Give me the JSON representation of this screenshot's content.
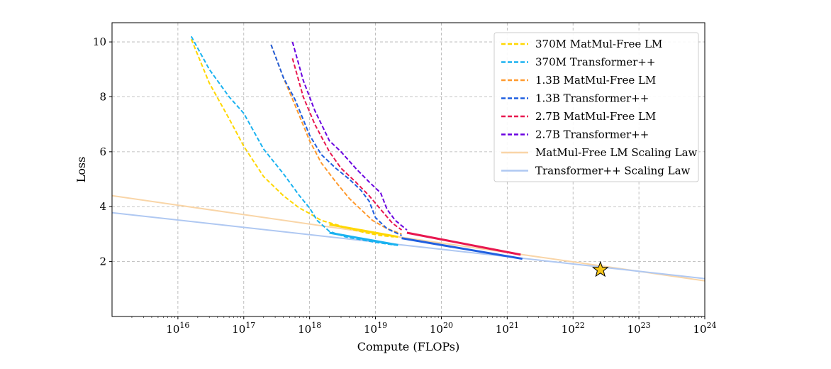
{
  "chart_data": {
    "type": "line",
    "title": "",
    "xlabel": "Compute (FLOPs)",
    "ylabel": "Loss",
    "xscale": "log",
    "xlim": [
      1000000000000000.0,
      1e+24
    ],
    "ylim": [
      0,
      10.7
    ],
    "x_ticks": [
      {
        "value": 1e+16,
        "base": "10",
        "exp": "16"
      },
      {
        "value": 1e+17,
        "base": "10",
        "exp": "17"
      },
      {
        "value": 1e+18,
        "base": "10",
        "exp": "18"
      },
      {
        "value": 1e+19,
        "base": "10",
        "exp": "19"
      },
      {
        "value": 1e+20,
        "base": "10",
        "exp": "20"
      },
      {
        "value": 1e+21,
        "base": "10",
        "exp": "21"
      },
      {
        "value": 1e+22,
        "base": "10",
        "exp": "22"
      },
      {
        "value": 1e+23,
        "base": "10",
        "exp": "23"
      },
      {
        "value": 1e+24,
        "base": "10",
        "exp": "24"
      }
    ],
    "y_ticks": [
      {
        "value": 2,
        "label": "2"
      },
      {
        "value": 4,
        "label": "4"
      },
      {
        "value": 6,
        "label": "6"
      },
      {
        "value": 8,
        "label": "8"
      },
      {
        "value": 10,
        "label": "10"
      }
    ],
    "grid": true,
    "legend_position": "top-right",
    "series": [
      {
        "name": "370M MatMul-Free LM",
        "color": "#FFD700",
        "style": "dashed",
        "x": [
          1.6e+16,
          3e+16,
          6e+16,
          1e+17,
          2e+17,
          4e+17,
          7e+17,
          1e+18,
          1.5e+18,
          2.5e+18,
          4e+18,
          7e+18,
          1.2e+19,
          1.9e+19
        ],
        "y": [
          10.1,
          8.5,
          7.2,
          6.2,
          5.1,
          4.4,
          3.95,
          3.75,
          3.5,
          3.35,
          3.2,
          3.05,
          2.95,
          2.9
        ]
      },
      {
        "name": "370M Transformer++",
        "color": "#1AB2F0",
        "style": "dashed",
        "x": [
          1.6e+16,
          3e+16,
          6e+16,
          1e+17,
          2e+17,
          4e+17,
          7e+17,
          1e+18,
          1.3e+18,
          2e+18,
          3.5e+18,
          6e+18,
          1e+19,
          2e+19
        ],
        "y": [
          10.2,
          9.0,
          8.0,
          7.4,
          6.1,
          5.2,
          4.4,
          3.95,
          3.5,
          3.1,
          2.9,
          2.8,
          2.7,
          2.6
        ]
      },
      {
        "name": "1.3B MatMul-Free LM",
        "color": "#FF9A2E",
        "style": "dashed",
        "x": [
          2.6e+17,
          4e+17,
          6e+17,
          1e+18,
          1.5e+18,
          2.5e+18,
          4e+18,
          6e+18,
          9e+18,
          1.5e+19,
          2.5e+19
        ],
        "y": [
          9.9,
          8.7,
          7.7,
          6.4,
          5.6,
          4.9,
          4.3,
          3.9,
          3.5,
          3.2,
          3.0
        ]
      },
      {
        "name": "1.3B Transformer++",
        "color": "#1F5FE0",
        "style": "dashed",
        "x": [
          2.6e+17,
          4e+17,
          6e+17,
          1e+18,
          1.5e+18,
          2.5e+18,
          4e+18,
          6e+18,
          8e+18,
          1e+19,
          1.5e+19,
          2.5e+19
        ],
        "y": [
          9.9,
          8.7,
          7.9,
          6.6,
          5.9,
          5.4,
          5.0,
          4.6,
          4.2,
          3.6,
          3.2,
          2.95
        ]
      },
      {
        "name": "2.7B MatMul-Free LM",
        "color": "#E8174F",
        "style": "dashed",
        "x": [
          5.5e+17,
          8e+17,
          1.2e+18,
          2e+18,
          3e+18,
          5e+18,
          8e+18,
          1.2e+19,
          1.8e+19,
          2.5e+19
        ],
        "y": [
          9.4,
          8.0,
          7.0,
          6.0,
          5.4,
          4.9,
          4.4,
          3.9,
          3.4,
          3.15
        ]
      },
      {
        "name": "2.7B Transformer++",
        "color": "#6A00E0",
        "style": "dashed",
        "x": [
          5.5e+17,
          8e+17,
          1.2e+18,
          2e+18,
          3e+18,
          5e+18,
          8e+18,
          1.2e+19,
          1.5e+19,
          2e+19,
          3e+19
        ],
        "y": [
          10.0,
          8.6,
          7.5,
          6.4,
          6.0,
          5.4,
          4.9,
          4.5,
          3.9,
          3.5,
          3.15
        ]
      },
      {
        "name": "MatMul-Free LM Scaling Law",
        "color": "#F9D5A7",
        "style": "solid",
        "x": [
          1000000000000000.0,
          1e+24
        ],
        "y": [
          4.4,
          1.3
        ]
      },
      {
        "name": "Transformer++ Scaling Law",
        "color": "#AFC8F2",
        "style": "solid",
        "x": [
          1000000000000000.0,
          1e+24
        ],
        "y": [
          3.78,
          1.38
        ]
      }
    ],
    "solid_tails": [
      {
        "color": "#FFD700",
        "x": [
          2e+18,
          2.2e+19
        ],
        "y": [
          3.35,
          2.9
        ]
      },
      {
        "color": "#1AB2F0",
        "x": [
          2e+18,
          2.2e+19
        ],
        "y": [
          3.05,
          2.6
        ]
      },
      {
        "color": "#E8174F",
        "x": [
          3e+19,
          1.6e+21
        ],
        "y": [
          3.05,
          2.25
        ]
      },
      {
        "color": "#1F5FE0",
        "x": [
          2.5e+19,
          1.7e+21
        ],
        "y": [
          2.85,
          2.1
        ]
      }
    ],
    "marker": {
      "shape": "star",
      "x": 2.6e+22,
      "y": 1.7,
      "color": "#F5C518"
    }
  }
}
